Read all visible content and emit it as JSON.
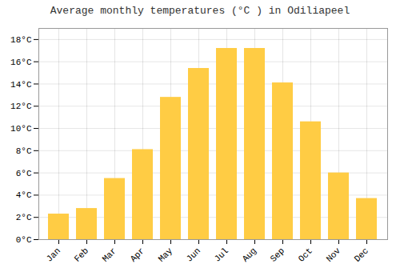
{
  "chart_data": {
    "type": "bar",
    "title": "Average monthly temperatures (°C ) in Odiliapeel",
    "categories": [
      "Jan",
      "Feb",
      "Mar",
      "Apr",
      "May",
      "Jun",
      "Jul",
      "Aug",
      "Sep",
      "Oct",
      "Nov",
      "Dec"
    ],
    "values": [
      2.3,
      2.8,
      5.5,
      8.1,
      12.8,
      15.4,
      17.2,
      17.2,
      14.1,
      10.6,
      6.0,
      3.7
    ],
    "color": "#FFCC44",
    "ylim": [
      0,
      19
    ],
    "yticks": [
      {
        "value": 0,
        "label": "0°C"
      },
      {
        "value": 2,
        "label": "2°C"
      },
      {
        "value": 4,
        "label": "4°C"
      },
      {
        "value": 6,
        "label": "6°C"
      },
      {
        "value": 8,
        "label": "8°C"
      },
      {
        "value": 10,
        "label": "10°C"
      },
      {
        "value": 12,
        "label": "12°C"
      },
      {
        "value": 14,
        "label": "14°C"
      },
      {
        "value": 16,
        "label": "16°C"
      },
      {
        "value": 18,
        "label": "18°C"
      }
    ],
    "grid": true
  }
}
